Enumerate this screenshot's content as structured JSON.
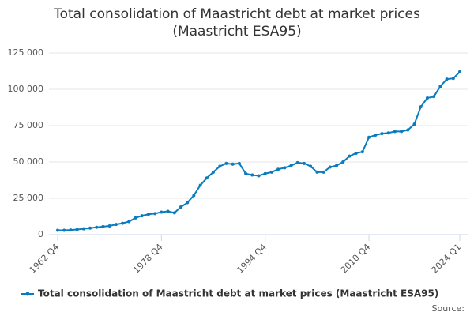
{
  "chart_data": {
    "type": "line",
    "title": "Total consolidation of Maastricht debt at market prices",
    "subtitle": "(Maastricht ESA95)",
    "categories": [
      "1962 Q4",
      null,
      null,
      null,
      null,
      null,
      null,
      null,
      null,
      null,
      null,
      null,
      null,
      null,
      null,
      null,
      "1978 Q4",
      null,
      null,
      null,
      null,
      null,
      null,
      null,
      null,
      null,
      null,
      null,
      null,
      null,
      null,
      null,
      "1994 Q4",
      null,
      null,
      null,
      null,
      null,
      null,
      null,
      null,
      null,
      null,
      null,
      null,
      null,
      null,
      null,
      "2010 Q4",
      null,
      null,
      null,
      null,
      null,
      null,
      null,
      null,
      null,
      null,
      null,
      null,
      null,
      "2024 Q1"
    ],
    "series": [
      {
        "name": "Total consolidation of Maastricht debt at market prices (Maastricht ESA95)",
        "color": "#0a7bbf",
        "values": [
          3000,
          3000,
          3200,
          3500,
          4000,
          4500,
          5000,
          5500,
          6000,
          7000,
          7800,
          9000,
          11500,
          13000,
          14000,
          14500,
          15500,
          16000,
          15000,
          19000,
          22000,
          27000,
          34000,
          39000,
          43000,
          47000,
          49000,
          48500,
          49000,
          42000,
          41000,
          40500,
          42000,
          43000,
          45000,
          46000,
          47500,
          49500,
          49000,
          47000,
          43000,
          43000,
          46500,
          47500,
          50000,
          54000,
          56000,
          57000,
          67000,
          68500,
          69500,
          70000,
          71000,
          71000,
          72000,
          76000,
          88000,
          94000,
          95000,
          102000,
          107000,
          107500,
          112000
        ]
      }
    ],
    "ylim": [
      0,
      125000
    ],
    "yticks": [
      0,
      {
        "value": 25000,
        "label": "25 000"
      },
      {
        "value": 50000,
        "label": "50 000"
      },
      {
        "value": 75000,
        "label": "75 000"
      },
      {
        "value": 100000,
        "label": "100 000"
      },
      {
        "value": 125000,
        "label": "125 000"
      }
    ],
    "grid": true,
    "source": "Source:"
  }
}
